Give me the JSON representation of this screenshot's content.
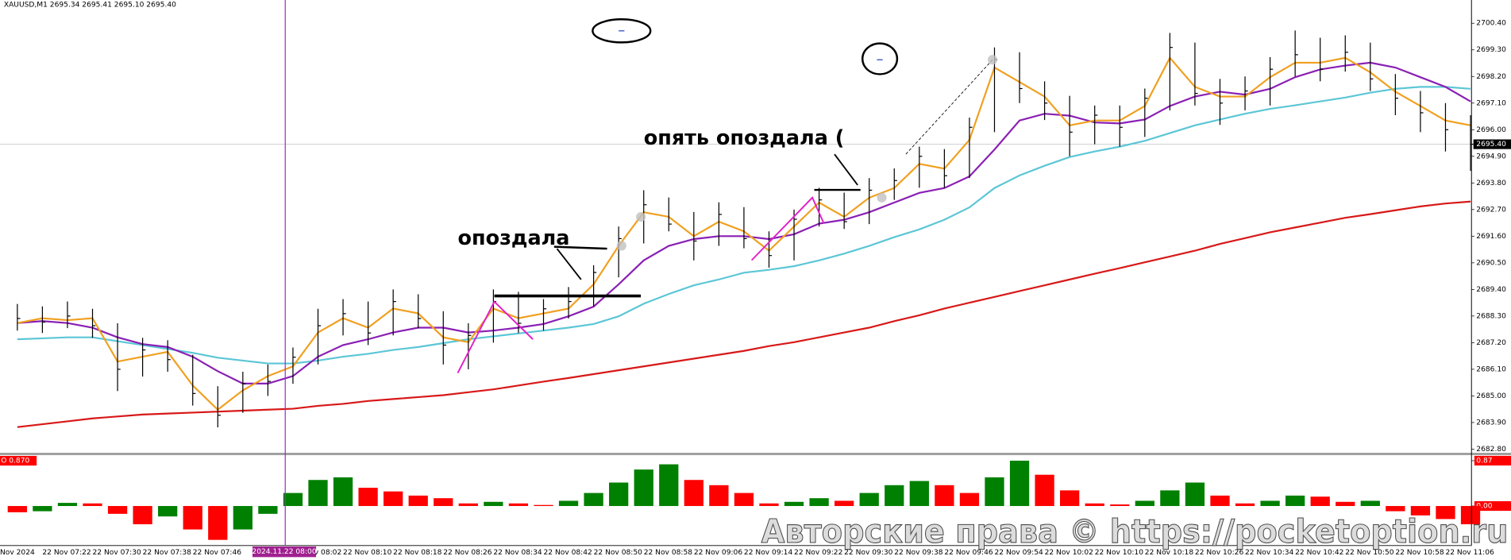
{
  "header": "XAUUSD,M1  2695.34 2695.41 2695.10 2695.40",
  "chart_data": {
    "type": "ohlc",
    "date_label": "Nov 2024",
    "categories": [
      null,
      "22 Nov 07:22",
      null,
      "22 Nov 07:30",
      null,
      "22 Nov 07:38",
      null,
      "22 Nov 07:46",
      null,
      null,
      null,
      "22 Nov 08:02",
      null,
      "22 Nov 08:10",
      null,
      "22 Nov 08:18",
      null,
      "22 Nov 08:26",
      null,
      "22 Nov 08:34",
      null,
      "22 Nov 08:42",
      null,
      "22 Nov 08:50",
      null,
      "22 Nov 08:58",
      null,
      "22 Nov 09:06",
      null,
      "22 Nov 09:14",
      null,
      "22 Nov 09:22",
      null,
      "22 Nov 09:30",
      null,
      "22 Nov 09:38",
      null,
      "22 Nov 09:46",
      null,
      "22 Nov 09:54",
      null,
      "22 Nov 10:02",
      null,
      "22 Nov 10:10",
      null,
      "22 Nov 10:18",
      null,
      "22 Nov 10:26",
      null,
      "22 Nov 10:34",
      null,
      "22 Nov 10:42",
      null,
      "22 Nov 10:50",
      null,
      "22 Nov 10:58",
      null,
      "22 Nov 11:06",
      null
    ],
    "high": [
      2688.8,
      2688.7,
      2688.9,
      2688.6,
      2688.0,
      2687.4,
      2687.3,
      2686.7,
      2685.4,
      2686.0,
      2686.3,
      2687.0,
      2688.6,
      2689.0,
      2688.9,
      2689.4,
      2689.2,
      2688.5,
      2688.0,
      2689.4,
      2689.3,
      2689.0,
      2689.5,
      2690.4,
      2692.0,
      2693.5,
      2693.2,
      2692.6,
      2693.0,
      2692.8,
      2691.8,
      2692.7,
      2693.6,
      2693.4,
      2694.0,
      2694.4,
      2695.3,
      2695.2,
      2696.5,
      2699.4,
      2699.2,
      2698.0,
      2697.4,
      2697.0,
      2697.0,
      2697.7,
      2700.0,
      2699.6,
      2698.1,
      2698.2,
      2699.0,
      2700.1,
      2699.8,
      2699.9,
      2699.6,
      2698.3,
      2697.6,
      2697.1,
      2696.6
    ],
    "low": [
      2687.7,
      2687.6,
      2687.8,
      2687.4,
      2685.2,
      2685.8,
      2686.0,
      2684.6,
      2683.7,
      2684.3,
      2685.0,
      2685.5,
      2686.3,
      2687.5,
      2687.1,
      2687.5,
      2687.8,
      2686.3,
      2686.1,
      2687.2,
      2687.6,
      2687.7,
      2688.2,
      2688.7,
      2689.9,
      2691.3,
      2691.8,
      2690.6,
      2691.2,
      2691.1,
      2690.3,
      2690.6,
      2692.0,
      2691.9,
      2692.1,
      2693.1,
      2693.6,
      2693.6,
      2694.0,
      2695.9,
      2697.1,
      2696.4,
      2694.9,
      2695.4,
      2695.3,
      2695.7,
      2696.8,
      2697.0,
      2696.2,
      2696.8,
      2697.0,
      2698.2,
      2698.0,
      2698.4,
      2697.6,
      2696.6,
      2695.9,
      2695.1,
      2694.3
    ],
    "close": [
      2688.2,
      2688.05,
      2688.3,
      2687.9,
      2686.1,
      2686.9,
      2686.5,
      2685.1,
      2684.2,
      2685.5,
      2685.6,
      2686.6,
      2687.9,
      2688.4,
      2687.6,
      2688.9,
      2688.2,
      2687.1,
      2687.5,
      2688.9,
      2688.0,
      2688.6,
      2688.9,
      2690.1,
      2691.5,
      2692.9,
      2692.1,
      2691.4,
      2692.5,
      2691.5,
      2690.8,
      2692.3,
      2693.1,
      2692.2,
      2693.5,
      2693.9,
      2694.9,
      2694.1,
      2696.1,
      2698.9,
      2697.7,
      2697.1,
      2695.9,
      2696.6,
      2696.1,
      2697.3,
      2699.4,
      2697.5,
      2697.1,
      2697.6,
      2698.5,
      2699.1,
      2698.5,
      2699.2,
      2698.1,
      2697.3,
      2696.7,
      2696.0,
      2695.4
    ],
    "bar_color": "#000000",
    "moving_averages": [
      {
        "color": "#d81818",
        "values": [
          2683.71,
          2683.83,
          2683.95,
          2684.07,
          2684.15,
          2684.23,
          2684.27,
          2684.31,
          2684.35,
          2684.39,
          2684.43,
          2684.47,
          2684.59,
          2684.67,
          2684.79,
          2684.87,
          2684.95,
          2685.03,
          2685.15,
          2685.27,
          2685.43,
          2685.59,
          2685.74,
          2685.9,
          2686.06,
          2686.22,
          2686.38,
          2686.54,
          2686.7,
          2686.86,
          2687.06,
          2687.22,
          2687.42,
          2687.62,
          2687.82,
          2688.09,
          2688.33,
          2688.61,
          2688.85,
          2689.09,
          2689.33,
          2689.57,
          2689.81,
          2690.05,
          2690.28,
          2690.52,
          2690.76,
          2691.0,
          2691.28,
          2691.52,
          2691.76,
          2691.96,
          2692.16,
          2692.36,
          2692.51,
          2692.67,
          2692.83,
          2692.95,
          2693.03
        ]
      },
      {
        "color": "#5cc6d6",
        "values": [
          2687.34,
          2687.38,
          2687.42,
          2687.42,
          2687.26,
          2687.1,
          2686.94,
          2686.78,
          2686.58,
          2686.46,
          2686.34,
          2686.34,
          2686.46,
          2686.62,
          2686.74,
          2686.9,
          2687.02,
          2687.18,
          2687.34,
          2687.46,
          2687.58,
          2687.7,
          2687.82,
          2687.97,
          2688.29,
          2688.81,
          2689.21,
          2689.57,
          2689.81,
          2690.09,
          2690.21,
          2690.36,
          2690.6,
          2690.88,
          2691.2,
          2691.56,
          2691.88,
          2692.28,
          2692.79,
          2693.59,
          2694.11,
          2694.51,
          2694.87,
          2695.1,
          2695.3,
          2695.54,
          2695.86,
          2696.18,
          2696.42,
          2696.66,
          2696.86,
          2697.01,
          2697.17,
          2697.33,
          2697.53,
          2697.69,
          2697.77,
          2697.77,
          2697.69
        ]
      },
      {
        "color": "#8a1fb4",
        "values": [
          2688.01,
          2688.09,
          2688.01,
          2687.82,
          2687.42,
          2687.14,
          2687.02,
          2686.62,
          2686.02,
          2685.51,
          2685.51,
          2685.82,
          2686.62,
          2687.1,
          2687.34,
          2687.62,
          2687.82,
          2687.82,
          2687.62,
          2687.7,
          2687.82,
          2687.97,
          2688.29,
          2688.69,
          2689.61,
          2690.6,
          2691.2,
          2691.48,
          2691.6,
          2691.6,
          2691.48,
          2691.68,
          2692.12,
          2692.28,
          2692.59,
          2692.99,
          2693.39,
          2693.59,
          2694.07,
          2695.18,
          2696.38,
          2696.66,
          2696.58,
          2696.3,
          2696.26,
          2696.42,
          2696.98,
          2697.37,
          2697.57,
          2697.45,
          2697.69,
          2698.17,
          2698.49,
          2698.65,
          2698.77,
          2698.57,
          2698.17,
          2697.77,
          2697.17
        ]
      },
      {
        "color": "#f0a020",
        "values": [
          2688.01,
          2688.21,
          2688.13,
          2688.21,
          2686.42,
          2686.62,
          2686.82,
          2685.43,
          2684.43,
          2685.23,
          2685.82,
          2686.22,
          2687.62,
          2688.21,
          2687.82,
          2688.61,
          2688.41,
          2687.42,
          2687.22,
          2688.61,
          2688.21,
          2688.41,
          2688.61,
          2689.61,
          2691.2,
          2692.59,
          2692.4,
          2691.6,
          2692.2,
          2691.8,
          2691.0,
          2692.0,
          2692.99,
          2692.4,
          2693.19,
          2693.59,
          2694.59,
          2694.39,
          2695.58,
          2698.57,
          2697.97,
          2697.37,
          2696.18,
          2696.38,
          2696.38,
          2696.98,
          2698.97,
          2697.77,
          2697.37,
          2697.37,
          2698.17,
          2698.77,
          2698.77,
          2698.97,
          2698.37,
          2697.57,
          2696.98,
          2696.38,
          2696.18
        ]
      }
    ],
    "ylim": [
      2682.64,
      2701.36
    ],
    "yticks": [
      {
        "value": 2682.8,
        "label": "2682.80"
      },
      {
        "value": 2683.9,
        "label": "2683.90"
      },
      {
        "value": 2685,
        "label": "2685.00"
      },
      {
        "value": 2686.1,
        "label": "2686.10"
      },
      {
        "value": 2687.2,
        "label": "2687.20"
      },
      {
        "value": 2688.3,
        "label": "2688.30"
      },
      {
        "value": 2689.4,
        "label": "2689.40"
      },
      {
        "value": 2690.5,
        "label": "2690.50"
      },
      {
        "value": 2691.6,
        "label": "2691.60"
      },
      {
        "value": 2692.7,
        "label": "2692.70"
      },
      {
        "value": 2693.8,
        "label": "2693.80"
      },
      {
        "value": 2694.9,
        "label": "2694.90"
      },
      {
        "value": 2696,
        "label": "2696.00"
      },
      {
        "value": 2697.1,
        "label": "2697.10"
      },
      {
        "value": 2698.2,
        "label": "2698.20"
      },
      {
        "value": 2699.3,
        "label": "2699.30"
      },
      {
        "value": 2700.4,
        "label": "2700.40"
      }
    ],
    "grid": false,
    "last_price": {
      "value": 2695.4,
      "label": "2695.40"
    },
    "crosshair_label": "2024.11.22 08:00",
    "oscillator": {
      "label": "O 0.870",
      "up_color": "#008000",
      "down_color": "#ff0000",
      "values": [
        -0.12,
        -0.1,
        0.06,
        0.05,
        -0.15,
        -0.35,
        -0.2,
        -0.45,
        -0.65,
        -0.45,
        -0.15,
        0.25,
        0.5,
        0.55,
        0.35,
        0.28,
        0.2,
        0.15,
        0.05,
        0.08,
        0.05,
        0.02,
        0.1,
        0.25,
        0.45,
        0.7,
        0.8,
        0.5,
        0.4,
        0.25,
        0.05,
        0.08,
        0.15,
        0.1,
        0.25,
        0.4,
        0.48,
        0.4,
        0.25,
        0.55,
        0.87,
        0.6,
        0.3,
        0.05,
        0.03,
        0.1,
        0.3,
        0.45,
        0.2,
        0.05,
        0.1,
        0.2,
        0.18,
        0.08,
        0.1,
        -0.1,
        -0.18,
        -0.25,
        -0.35
      ],
      "ylim": [
        -0.74,
        0.98
      ],
      "yticks": [
        0.87,
        {
          "value": 0,
          "label": "0.00"
        }
      ]
    },
    "annotations": [
      "опоздала",
      "опять опоздала ("
    ]
  },
  "watermark": "Авторские права © https://pocketoption.ru"
}
